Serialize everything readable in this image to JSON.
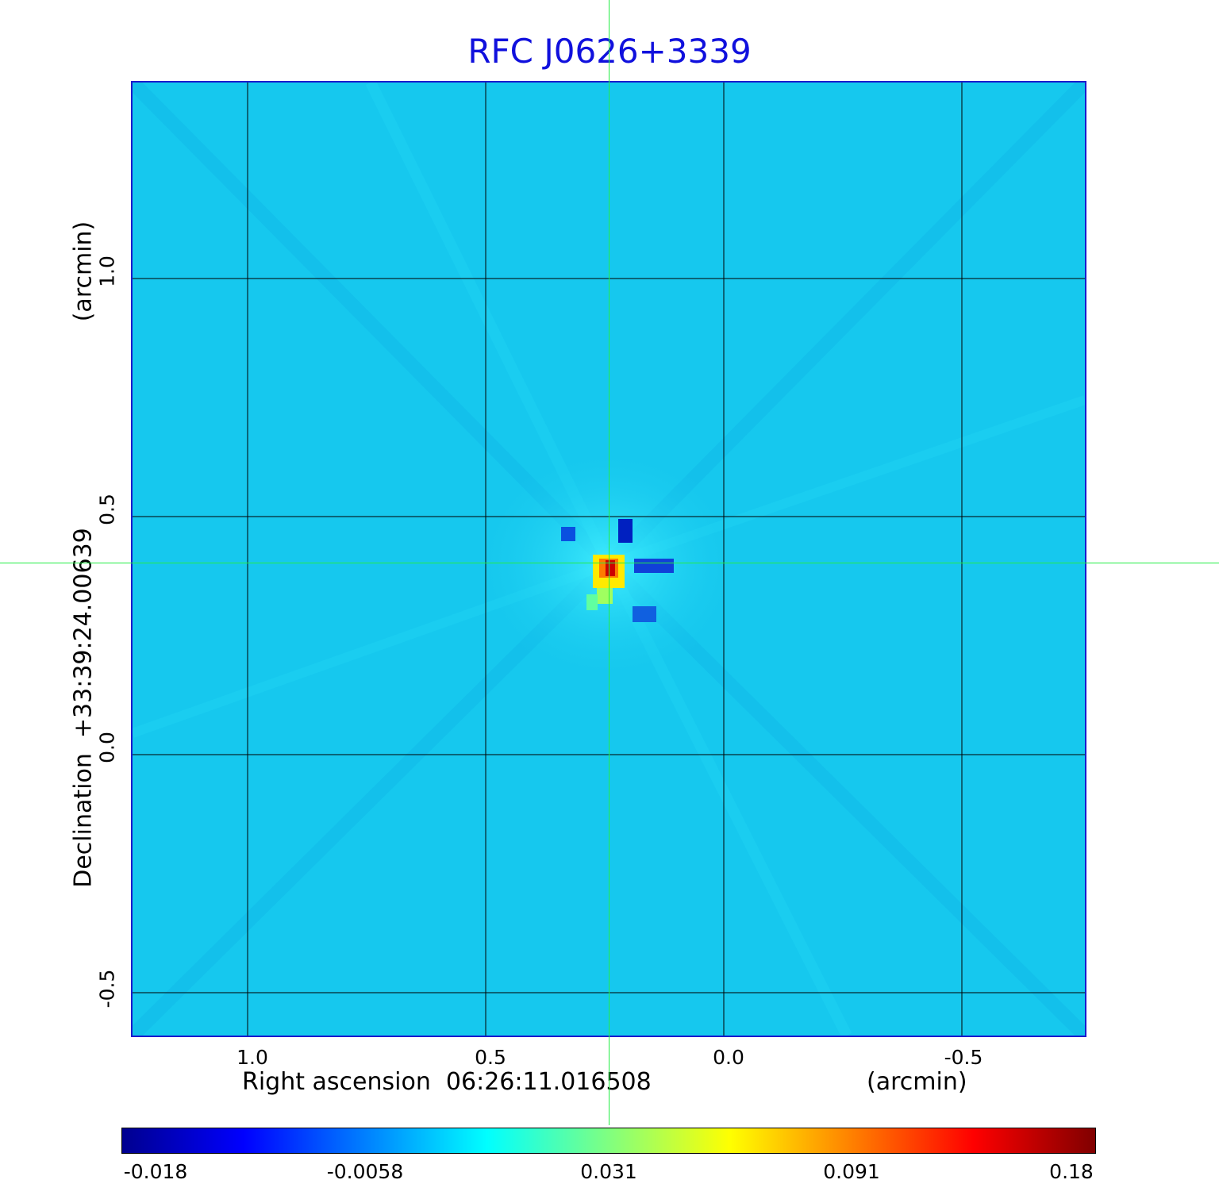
{
  "title": "RFC J0626+3339",
  "x_axis": {
    "label": "Right ascension  06:26:11.016508",
    "unit": "(arcmin)",
    "ticks": [
      "1.0",
      "0.5",
      "0.0",
      "-0.5"
    ]
  },
  "y_axis": {
    "label": "Declination  +33:39:24.00639",
    "unit": "(arcmin)",
    "ticks": [
      "1.0",
      "0.5",
      "0.0",
      "-0.5"
    ]
  },
  "colorbar": {
    "ticks": [
      "-0.018",
      "-0.0058",
      "0.031",
      "0.091",
      "0.18"
    ],
    "colormap": "jet"
  },
  "colors": {
    "title": "#1010dd",
    "background_map": "#16c8ee",
    "crosshair": "#22ee44",
    "frame": "#1a1acc"
  },
  "crosshair_icon": "crosshair-icon"
}
